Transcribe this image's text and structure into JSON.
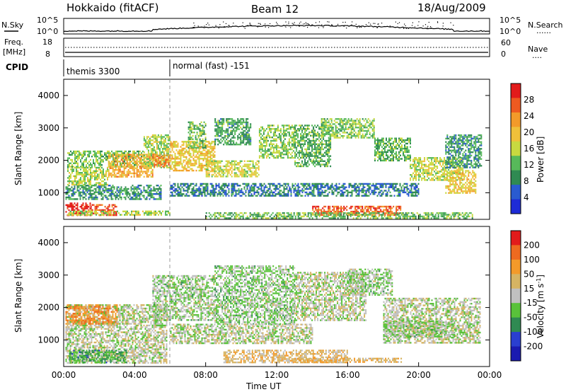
{
  "header": {
    "station": "Hokkaido (fitACF)",
    "beam": "Beam 12",
    "date": "18/Aug/2009"
  },
  "strip_panel": {
    "left_label": "N.Sky",
    "left_ticks": [
      "10^5",
      "10^0"
    ],
    "right_ticks": [
      "10^5",
      "10^0"
    ],
    "right_label": "N.Search",
    "right_legend": "......"
  },
  "freq_panel": {
    "left_label_1": "Freq.",
    "left_label_2": "[MHz]",
    "left_ticks": [
      "18",
      "8"
    ],
    "right_ticks": [
      "60",
      "0"
    ],
    "right_label": "Nave",
    "right_legend": "...."
  },
  "cpid": {
    "label": "CPID",
    "segments": [
      {
        "name": "themis 3300",
        "start_hour": 0
      },
      {
        "name": "normal (fast) -151",
        "start_hour": 6
      }
    ]
  },
  "colors": {
    "power": [
      "#1e2bd6",
      "#2a5bd0",
      "#2f8a52",
      "#57b95a",
      "#c8d940",
      "#f0c03a",
      "#f39a2a",
      "#ee5a20",
      "#e21b1b"
    ],
    "velocity": [
      "#1a1ab0",
      "#2a3fd0",
      "#2f8a52",
      "#59c23a",
      "#c0c0c0",
      "#d6b463",
      "#f39a2a",
      "#ee6a20",
      "#e21b1b"
    ]
  },
  "chart_data": [
    {
      "type": "heatmap",
      "title": "",
      "xlabel": "",
      "ylabel": "Slant Range [km]",
      "xlim": [
        0,
        24
      ],
      "ylim": [
        180,
        4500
      ],
      "x_ticks": [
        "00:00",
        "04:00",
        "08:00",
        "12:00",
        "16:00",
        "20:00",
        "00:00"
      ],
      "y_ticks": [
        "1000",
        "2000",
        "3000",
        "4000"
      ],
      "colorbar": {
        "label": "Power [dB]",
        "ticks": [
          "28",
          "24",
          "20",
          "16",
          "12",
          "8",
          "4"
        ],
        "range": [
          0,
          30
        ]
      },
      "value_field": "power",
      "regions": [
        {
          "x0": 0.1,
          "x1": 1.5,
          "y0": 300,
          "y1": 700,
          "v": 28
        },
        {
          "x0": 1.5,
          "x1": 3.0,
          "y0": 320,
          "y1": 650,
          "v": 26
        },
        {
          "x0": 0.2,
          "x1": 6.0,
          "y0": 300,
          "y1": 450,
          "v": 14
        },
        {
          "x0": 0.1,
          "x1": 5.5,
          "y0": 800,
          "y1": 1250,
          "v": 9
        },
        {
          "x0": 0.2,
          "x1": 2.5,
          "y0": 1250,
          "y1": 1800,
          "v": 14
        },
        {
          "x0": 0.2,
          "x1": 4.5,
          "y0": 1800,
          "y1": 2300,
          "v": 12
        },
        {
          "x0": 2.5,
          "x1": 5.0,
          "y0": 1500,
          "y1": 2200,
          "v": 20
        },
        {
          "x0": 4.5,
          "x1": 6.0,
          "y0": 1800,
          "y1": 2800,
          "v": 14
        },
        {
          "x0": 5.0,
          "x1": 6.0,
          "y0": 1800,
          "y1": 2200,
          "v": 22
        },
        {
          "x0": 6.0,
          "x1": 8.5,
          "y0": 1700,
          "y1": 2600,
          "v": 18
        },
        {
          "x0": 7.0,
          "x1": 8.0,
          "y0": 2400,
          "y1": 3200,
          "v": 12
        },
        {
          "x0": 8.5,
          "x1": 10.5,
          "y0": 2500,
          "y1": 3300,
          "v": 10
        },
        {
          "x0": 8.0,
          "x1": 11.0,
          "y0": 1500,
          "y1": 2000,
          "v": 16
        },
        {
          "x0": 11.0,
          "x1": 13.0,
          "y0": 2100,
          "y1": 3100,
          "v": 13
        },
        {
          "x0": 13.0,
          "x1": 15.0,
          "y0": 1800,
          "y1": 3100,
          "v": 11
        },
        {
          "x0": 14.5,
          "x1": 17.5,
          "y0": 2700,
          "y1": 3300,
          "v": 13
        },
        {
          "x0": 17.5,
          "x1": 19.5,
          "y0": 2000,
          "y1": 2700,
          "v": 11
        },
        {
          "x0": 19.5,
          "x1": 22.5,
          "y0": 1400,
          "y1": 2100,
          "v": 15
        },
        {
          "x0": 21.5,
          "x1": 23.2,
          "y0": 1000,
          "y1": 1700,
          "v": 18
        },
        {
          "x0": 6.0,
          "x1": 20.0,
          "y0": 900,
          "y1": 1300,
          "v": 7
        },
        {
          "x0": 14.0,
          "x1": 19.0,
          "y0": 300,
          "y1": 600,
          "v": 25
        },
        {
          "x0": 8.0,
          "x1": 23.0,
          "y0": 200,
          "y1": 400,
          "v": 12
        },
        {
          "x0": 21.5,
          "x1": 23.5,
          "y0": 1800,
          "y1": 2800,
          "v": 9
        }
      ]
    },
    {
      "type": "heatmap",
      "title": "",
      "xlabel": "Time UT",
      "ylabel": "Slant Range [km]",
      "xlim": [
        0,
        24
      ],
      "ylim": [
        180,
        4500
      ],
      "x_ticks": [
        "00:00",
        "04:00",
        "08:00",
        "12:00",
        "16:00",
        "20:00",
        "00:00"
      ],
      "y_ticks": [
        "1000",
        "2000",
        "3000",
        "4000"
      ],
      "colorbar": {
        "label": "Velocity [m s^-1]",
        "ticks": [
          "200",
          "100",
          "50",
          "15",
          "-15",
          "-50",
          "-100",
          "-200"
        ],
        "range": [
          -250,
          250
        ]
      },
      "value_field": "velocity",
      "regions": [
        {
          "x0": 0.1,
          "x1": 5.8,
          "y0": 300,
          "y1": 2100,
          "v": 0
        },
        {
          "x0": 0.1,
          "x1": 3.0,
          "y0": 1500,
          "y1": 2100,
          "v": 120
        },
        {
          "x0": 0.3,
          "x1": 3.5,
          "y0": 300,
          "y1": 700,
          "v": -80
        },
        {
          "x0": 5.0,
          "x1": 8.5,
          "y0": 1600,
          "y1": 3000,
          "v": -25
        },
        {
          "x0": 8.5,
          "x1": 13.0,
          "y0": 1500,
          "y1": 3300,
          "v": -30
        },
        {
          "x0": 6.0,
          "x1": 14.0,
          "y0": 900,
          "y1": 1500,
          "v": 0
        },
        {
          "x0": 13.0,
          "x1": 17.0,
          "y0": 1600,
          "y1": 3100,
          "v": 0
        },
        {
          "x0": 16.0,
          "x1": 18.5,
          "y0": 2400,
          "y1": 3200,
          "v": -25
        },
        {
          "x0": 18.0,
          "x1": 23.5,
          "y0": 900,
          "y1": 2300,
          "v": 0
        },
        {
          "x0": 9.0,
          "x1": 16.0,
          "y0": 300,
          "y1": 700,
          "v": 60
        },
        {
          "x0": 13.0,
          "x1": 19.0,
          "y0": 300,
          "y1": 450,
          "v": 70
        },
        {
          "x0": 18.0,
          "x1": 22.0,
          "y0": 1100,
          "y1": 1600,
          "v": -25
        }
      ]
    }
  ]
}
